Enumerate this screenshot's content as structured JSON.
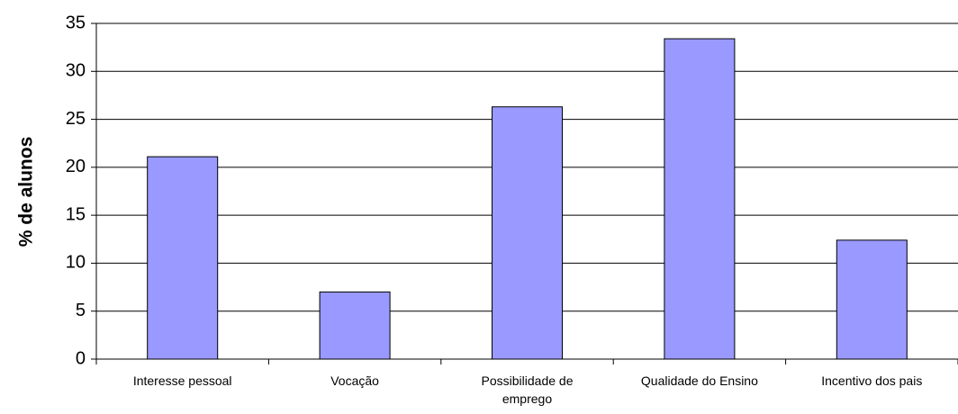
{
  "chart_data": {
    "type": "bar",
    "y_label": "% de alunos",
    "categories": [
      "Interesse pessoal",
      "Vocação",
      "Possibilidade de emprego",
      "Qualidade do Ensino",
      "Incentivo dos pais"
    ],
    "values": [
      21.1,
      7.0,
      26.3,
      33.4,
      12.4
    ],
    "color": "#9999ff",
    "ylim": [
      0,
      35
    ],
    "yticks": [
      0,
      5,
      10,
      15,
      20,
      25,
      30,
      35
    ],
    "grid": true
  }
}
